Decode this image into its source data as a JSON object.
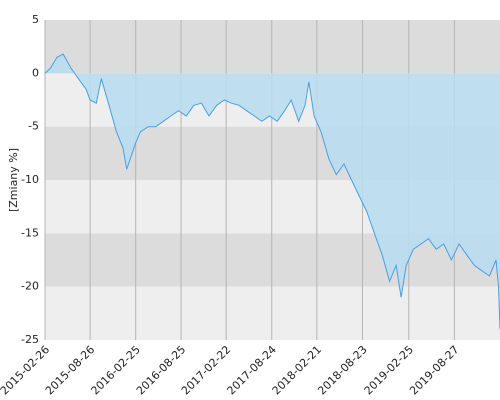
{
  "chart_data": {
    "type": "area",
    "y_label": "[Zmiany %]",
    "x": [
      "2015-02-26",
      "2015-03-20",
      "2015-04-15",
      "2015-05-10",
      "2015-06-10",
      "2015-07-10",
      "2015-08-10",
      "2015-08-26",
      "2015-09-20",
      "2015-10-10",
      "2015-11-10",
      "2015-12-10",
      "2016-01-05",
      "2016-01-20",
      "2016-02-25",
      "2016-03-15",
      "2016-04-15",
      "2016-05-15",
      "2016-06-15",
      "2016-07-15",
      "2016-08-15",
      "2016-09-15",
      "2016-10-15",
      "2016-11-15",
      "2016-12-15",
      "2017-01-15",
      "2017-02-15",
      "2017-03-15",
      "2017-04-15",
      "2017-05-15",
      "2017-06-15",
      "2017-07-15",
      "2017-08-15",
      "2017-09-15",
      "2017-10-15",
      "2017-11-10",
      "2017-12-10",
      "2018-01-05",
      "2018-01-20",
      "2018-02-10",
      "2018-03-10",
      "2018-04-10",
      "2018-05-10",
      "2018-06-10",
      "2018-07-10",
      "2018-08-10",
      "2018-09-10",
      "2018-10-10",
      "2018-11-10",
      "2018-12-10",
      "2019-01-05",
      "2019-01-25",
      "2019-02-15",
      "2019-03-15",
      "2019-04-15",
      "2019-05-15",
      "2019-06-15",
      "2019-07-15",
      "2019-08-15",
      "2019-09-15",
      "2019-10-15",
      "2019-11-15",
      "2019-12-15",
      "2020-01-15",
      "2020-02-10",
      "2020-02-20",
      "2020-02-26"
    ],
    "values": [
      0,
      0.5,
      1.5,
      1.8,
      0.5,
      -0.5,
      -1.5,
      -2.5,
      -2.8,
      -0.5,
      -3,
      -5.5,
      -7,
      -9,
      -6.5,
      -5.5,
      -5,
      -5,
      -4.5,
      -4,
      -3.5,
      -4,
      -3,
      -2.8,
      -4,
      -3,
      -2.5,
      -2.8,
      -3,
      -3.5,
      -4,
      -4.5,
      -4,
      -4.5,
      -3.5,
      -2.5,
      -4.5,
      -3,
      -0.8,
      -4,
      -5.5,
      -8,
      -9.5,
      -8.5,
      -10,
      -11.5,
      -13,
      -15,
      -17,
      -19.5,
      -18,
      -21,
      -18,
      -16.5,
      -16,
      -15.5,
      -16.5,
      -16,
      -17.5,
      -16,
      -17,
      -18,
      -18.5,
      -19,
      -17.5,
      -20,
      -24
    ],
    "color": "#4a9fe3",
    "fill_color": "#b9dcee",
    "xlim": [
      "2015-02-26",
      "2020-02-26"
    ],
    "xticks": [
      "2015-02-26",
      "2015-08-26",
      "2016-02-25",
      "2016-08-25",
      "2017-02-22",
      "2017-08-24",
      "2018-02-21",
      "2018-08-23",
      "2019-02-25",
      "2019-08-27"
    ],
    "ylim": [
      -25,
      5
    ],
    "yticks": [
      5,
      0,
      -5,
      -10,
      -15,
      -20,
      -25
    ],
    "grid": true
  }
}
